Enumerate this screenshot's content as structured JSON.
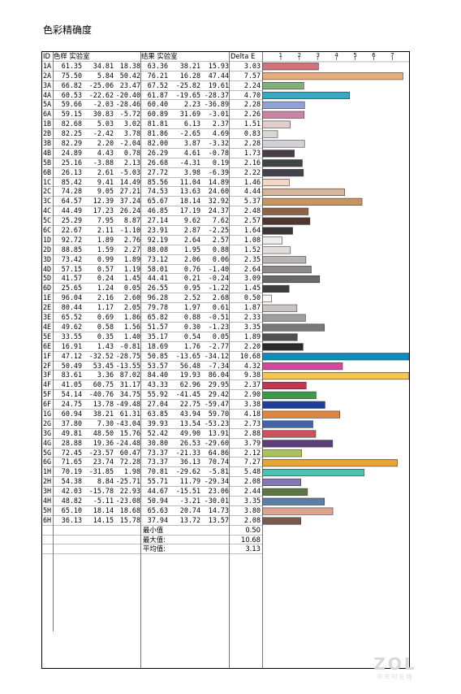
{
  "title": "色彩精确度",
  "headers": {
    "id": "ID",
    "target": "色样 实验室",
    "result": "结果 实验室",
    "delta": "Delta E"
  },
  "chart_data": {
    "type": "bar",
    "orientation": "horizontal",
    "x_ticks": [
      1,
      2,
      3,
      4,
      5,
      6,
      7
    ],
    "xlim": [
      0,
      7.9
    ],
    "rows": [
      {
        "id": "1A",
        "target": [
          "61.35",
          "34.81",
          "18.38"
        ],
        "result": [
          "63.36",
          "38.21",
          "15.93"
        ],
        "de": 3.03,
        "color": "#d1727a"
      },
      {
        "id": "2A",
        "target": [
          "75.50",
          "5.84",
          "50.42"
        ],
        "result": [
          "76.21",
          "16.28",
          "47.44"
        ],
        "de": 7.57,
        "color": "#e8ad7c"
      },
      {
        "id": "3A",
        "target": [
          "66.82",
          "-25.06",
          "23.47"
        ],
        "result": [
          "67.52",
          "-25.82",
          "19.61"
        ],
        "de": 2.24,
        "color": "#83b07a"
      },
      {
        "id": "4A",
        "target": [
          "60.53",
          "-22.62",
          "-20.40"
        ],
        "result": [
          "61.87",
          "-19.65",
          "-28.37"
        ],
        "de": 4.7,
        "color": "#39a8c2"
      },
      {
        "id": "5A",
        "target": [
          "59.66",
          "-2.03",
          "-28.46"
        ],
        "result": [
          "60.40",
          "2.23",
          "-36.89"
        ],
        "de": 2.28,
        "color": "#8fa3d8"
      },
      {
        "id": "6A",
        "target": [
          "59.15",
          "30.83",
          "-5.72"
        ],
        "result": [
          "60.89",
          "31.69",
          "-3.01"
        ],
        "de": 2.26,
        "color": "#cc84a4"
      },
      {
        "id": "1B",
        "target": [
          "82.68",
          "5.03",
          "3.02"
        ],
        "result": [
          "81.81",
          "6.13",
          "2.37"
        ],
        "de": 1.51,
        "color": "#e1cfcd"
      },
      {
        "id": "2B",
        "target": [
          "82.25",
          "-2.42",
          "3.78"
        ],
        "result": [
          "81.86",
          "-2.65",
          "4.69"
        ],
        "de": 0.83,
        "color": "#d6d8d1"
      },
      {
        "id": "3B",
        "target": [
          "82.29",
          "2.20",
          "-2.04"
        ],
        "result": [
          "82.00",
          "3.87",
          "-3.32"
        ],
        "de": 2.28,
        "color": "#d3d1d7"
      },
      {
        "id": "4B",
        "target": [
          "24.89",
          "4.43",
          "0.78"
        ],
        "result": [
          "26.29",
          "4.61",
          "-0.78"
        ],
        "de": 1.73,
        "color": "#473f43"
      },
      {
        "id": "5B",
        "target": [
          "25.16",
          "-3.88",
          "2.13"
        ],
        "result": [
          "26.68",
          "-4.31",
          "0.19"
        ],
        "de": 2.16,
        "color": "#3f4541"
      },
      {
        "id": "6B",
        "target": [
          "26.13",
          "2.61",
          "-5.03"
        ],
        "result": [
          "27.72",
          "3.98",
          "-6.39"
        ],
        "de": 2.22,
        "color": "#44434d"
      },
      {
        "id": "1C",
        "target": [
          "85.42",
          "9.41",
          "14.49"
        ],
        "result": [
          "85.56",
          "11.04",
          "14.89"
        ],
        "de": 1.46,
        "color": "#f4d6c4"
      },
      {
        "id": "2C",
        "target": [
          "74.28",
          "9.05",
          "27.21"
        ],
        "result": [
          "74.53",
          "13.63",
          "24.60"
        ],
        "de": 4.44,
        "color": "#d6b59b"
      },
      {
        "id": "3C",
        "target": [
          "64.57",
          "12.39",
          "37.24"
        ],
        "result": [
          "65.67",
          "18.14",
          "32.92"
        ],
        "de": 5.37,
        "color": "#c7955f"
      },
      {
        "id": "4C",
        "target": [
          "44.49",
          "17.23",
          "26.24"
        ],
        "result": [
          "46.85",
          "17.19",
          "24.37"
        ],
        "de": 2.48,
        "color": "#8e6249"
      },
      {
        "id": "5C",
        "target": [
          "25.29",
          "7.95",
          "8.87"
        ],
        "result": [
          "27.14",
          "9.62",
          "7.62"
        ],
        "de": 2.57,
        "color": "#4e3731"
      },
      {
        "id": "6C",
        "target": [
          "22.67",
          "2.11",
          "-1.10"
        ],
        "result": [
          "23.91",
          "2.87",
          "-2.25"
        ],
        "de": 1.64,
        "color": "#3a3538"
      },
      {
        "id": "1D",
        "target": [
          "92.72",
          "1.89",
          "2.76"
        ],
        "result": [
          "92.19",
          "2.64",
          "2.57"
        ],
        "de": 1.08,
        "color": "#f1ede8"
      },
      {
        "id": "2D",
        "target": [
          "88.85",
          "1.59",
          "2.27"
        ],
        "result": [
          "88.08",
          "1.95",
          "0.88"
        ],
        "de": 1.52,
        "color": "#e3dedc"
      },
      {
        "id": "3D",
        "target": [
          "73.42",
          "0.99",
          "1.89"
        ],
        "result": [
          "73.12",
          "2.06",
          "0.06"
        ],
        "de": 2.35,
        "color": "#b7b3b3"
      },
      {
        "id": "4D",
        "target": [
          "57.15",
          "0.57",
          "1.19"
        ],
        "result": [
          "58.01",
          "0.76",
          "-1.40"
        ],
        "de": 2.64,
        "color": "#8d8a8c"
      },
      {
        "id": "5D",
        "target": [
          "41.57",
          "0.24",
          "1.45"
        ],
        "result": [
          "44.41",
          "0.21",
          "-0.24"
        ],
        "de": 3.09,
        "color": "#6a6869"
      },
      {
        "id": "6D",
        "target": [
          "25.65",
          "1.24",
          "0.05"
        ],
        "result": [
          "26.55",
          "0.95",
          "-1.22"
        ],
        "de": 1.45,
        "color": "#3f3d3e"
      },
      {
        "id": "1E",
        "target": [
          "96.04",
          "2.16",
          "2.60"
        ],
        "result": [
          "96.28",
          "2.52",
          "2.68"
        ],
        "de": 0.5,
        "color": "#fbf7f5"
      },
      {
        "id": "2E",
        "target": [
          "80.44",
          "1.17",
          "2.05"
        ],
        "result": [
          "79.78",
          "1.97",
          "0.61"
        ],
        "de": 1.87,
        "color": "#c8c5c4"
      },
      {
        "id": "3E",
        "target": [
          "65.52",
          "0.69",
          "1.86"
        ],
        "result": [
          "65.82",
          "0.88",
          "-0.51"
        ],
        "de": 2.33,
        "color": "#a09d9d"
      },
      {
        "id": "4E",
        "target": [
          "49.62",
          "0.58",
          "1.56"
        ],
        "result": [
          "51.57",
          "0.30",
          "-1.23"
        ],
        "de": 3.35,
        "color": "#7a7879"
      },
      {
        "id": "5E",
        "target": [
          "33.55",
          "0.35",
          "1.40"
        ],
        "result": [
          "35.17",
          "0.54",
          "0.05"
        ],
        "de": 1.89,
        "color": "#525051"
      },
      {
        "id": "6E",
        "target": [
          "16.91",
          "1.43",
          "-0.81"
        ],
        "result": [
          "18.69",
          "1.76",
          "-2.77"
        ],
        "de": 2.2,
        "color": "#2b292b"
      },
      {
        "id": "1F",
        "target": [
          "47.12",
          "-32.52",
          "-28.75"
        ],
        "result": [
          "50.85",
          "-13.65",
          "-34.12"
        ],
        "de": 10.68,
        "color": "#0a8fbd"
      },
      {
        "id": "2F",
        "target": [
          "50.49",
          "53.45",
          "-13.55"
        ],
        "result": [
          "53.57",
          "56.48",
          "-7.34"
        ],
        "de": 4.32,
        "color": "#d14a9d"
      },
      {
        "id": "3F",
        "target": [
          "83.61",
          "3.36",
          "87.02"
        ],
        "result": [
          "84.40",
          "19.93",
          "86.04"
        ],
        "de": 9.38,
        "color": "#f6c64f"
      },
      {
        "id": "4F",
        "target": [
          "41.05",
          "60.75",
          "31.17"
        ],
        "result": [
          "43.33",
          "62.96",
          "29.95"
        ],
        "de": 2.37,
        "color": "#c2374f"
      },
      {
        "id": "5F",
        "target": [
          "54.14",
          "-40.76",
          "34.75"
        ],
        "result": [
          "55.92",
          "-41.45",
          "29.42"
        ],
        "de": 2.9,
        "color": "#3d9a4a"
      },
      {
        "id": "6F",
        "target": [
          "24.75",
          "13.78",
          "-49.48"
        ],
        "result": [
          "27.04",
          "22.75",
          "-59.47"
        ],
        "de": 3.38,
        "color": "#1f3e96"
      },
      {
        "id": "1G",
        "target": [
          "60.94",
          "38.21",
          "61.31"
        ],
        "result": [
          "63.85",
          "43.94",
          "59.70"
        ],
        "de": 4.18,
        "color": "#e4833d"
      },
      {
        "id": "2G",
        "target": [
          "37.80",
          "7.30",
          "-43.04"
        ],
        "result": [
          "39.93",
          "13.54",
          "-53.23"
        ],
        "de": 2.73,
        "color": "#4662ab"
      },
      {
        "id": "3G",
        "target": [
          "49.81",
          "48.50",
          "15.76"
        ],
        "result": [
          "52.42",
          "49.90",
          "13.91"
        ],
        "de": 2.88,
        "color": "#c7545f"
      },
      {
        "id": "4G",
        "target": [
          "28.88",
          "19.36",
          "-24.48"
        ],
        "result": [
          "30.80",
          "26.53",
          "-29.60"
        ],
        "de": 3.79,
        "color": "#5a3e79"
      },
      {
        "id": "5G",
        "target": [
          "72.45",
          "-23.57",
          "60.47"
        ],
        "result": [
          "73.37",
          "-21.33",
          "64.86"
        ],
        "de": 2.12,
        "color": "#a9c55a"
      },
      {
        "id": "6G",
        "target": [
          "71.65",
          "23.74",
          "72.28"
        ],
        "result": [
          "73.37",
          "36.13",
          "70.74"
        ],
        "de": 7.27,
        "color": "#e9a337"
      },
      {
        "id": "1H",
        "target": [
          "70.19",
          "-31.85",
          "1.98"
        ],
        "result": [
          "70.81",
          "-29.62",
          "-5.81"
        ],
        "de": 5.48,
        "color": "#4fc0b1"
      },
      {
        "id": "2H",
        "target": [
          "54.38",
          "8.84",
          "-25.71"
        ],
        "result": [
          "55.71",
          "11.79",
          "-29.34"
        ],
        "de": 2.08,
        "color": "#8278b3"
      },
      {
        "id": "3H",
        "target": [
          "42.03",
          "-15.78",
          "22.93"
        ],
        "result": [
          "44.67",
          "-15.51",
          "23.06"
        ],
        "de": 2.44,
        "color": "#5d7543"
      },
      {
        "id": "4H",
        "target": [
          "48.82",
          "-5.11",
          "-23.08"
        ],
        "result": [
          "50.94",
          "-3.21",
          "-30.01"
        ],
        "de": 3.35,
        "color": "#5c7fa8"
      },
      {
        "id": "5H",
        "target": [
          "65.10",
          "18.14",
          "18.68"
        ],
        "result": [
          "65.63",
          "20.74",
          "14.73"
        ],
        "de": 3.8,
        "color": "#dba48f"
      },
      {
        "id": "6H",
        "target": [
          "36.13",
          "14.15",
          "15.78"
        ],
        "result": [
          "37.94",
          "13.72",
          "13.57"
        ],
        "de": 2.08,
        "color": "#7a5a4c"
      }
    ]
  },
  "summary": [
    {
      "label": "最小值",
      "value": "0.50"
    },
    {
      "label": "最大值:",
      "value": "10.68"
    },
    {
      "label": "平均值:",
      "value": "3.13"
    }
  ],
  "watermark": {
    "logo": "ZOL",
    "sub": "中关村在线"
  }
}
